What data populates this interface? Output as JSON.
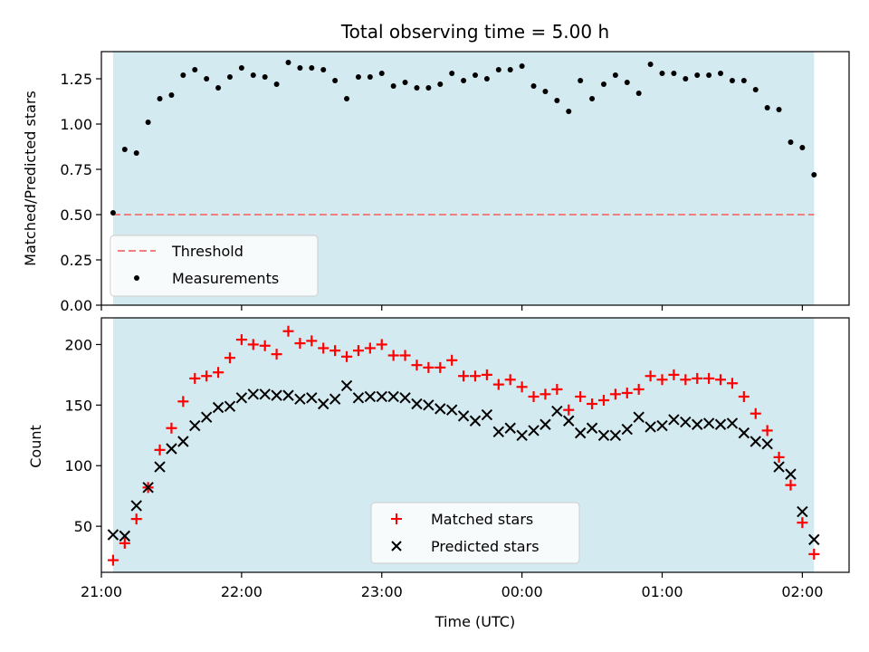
{
  "chart_data": [
    {
      "type": "scatter",
      "title": "Total observing time = 5.00 h",
      "ylabel": "Matched/Predicted stars",
      "xlabel": "",
      "xlim": [
        "21:00",
        "02:20"
      ],
      "ylim": [
        0,
        1.4
      ],
      "yticks": [
        "0.00",
        "0.25",
        "0.50",
        "0.75",
        "1.00",
        "1.25"
      ],
      "grid": false,
      "legend_position": "lower-left",
      "shaded_interval": {
        "start": "21:05",
        "end": "02:05",
        "color": "#d4eaf1"
      },
      "threshold": {
        "name": "Threshold",
        "value": 0.5,
        "color": "#f08080",
        "style": "dashed"
      },
      "series": [
        {
          "name": "Measurements",
          "color": "#000000",
          "marker": "dot",
          "x": [
            "21:05",
            "21:10",
            "21:15",
            "21:20",
            "21:25",
            "21:30",
            "21:35",
            "21:40",
            "21:45",
            "21:50",
            "21:55",
            "22:00",
            "22:05",
            "22:10",
            "22:15",
            "22:20",
            "22:25",
            "22:30",
            "22:35",
            "22:40",
            "22:45",
            "22:50",
            "22:55",
            "23:00",
            "23:05",
            "23:10",
            "23:15",
            "23:20",
            "23:25",
            "23:30",
            "23:35",
            "23:40",
            "23:45",
            "23:50",
            "23:55",
            "00:00",
            "00:05",
            "00:10",
            "00:15",
            "00:20",
            "00:25",
            "00:30",
            "00:35",
            "00:40",
            "00:45",
            "00:50",
            "00:55",
            "01:00",
            "01:05",
            "01:10",
            "01:15",
            "01:20",
            "01:25",
            "01:30",
            "01:35",
            "01:40",
            "01:45",
            "01:50",
            "01:55",
            "02:00",
            "02:05"
          ],
          "y": [
            0.51,
            0.86,
            0.84,
            1.01,
            1.14,
            1.16,
            1.27,
            1.3,
            1.25,
            1.2,
            1.26,
            1.31,
            1.27,
            1.26,
            1.22,
            1.34,
            1.31,
            1.31,
            1.3,
            1.24,
            1.14,
            1.26,
            1.26,
            1.28,
            1.21,
            1.23,
            1.2,
            1.2,
            1.22,
            1.28,
            1.24,
            1.27,
            1.25,
            1.3,
            1.3,
            1.32,
            1.21,
            1.18,
            1.13,
            1.07,
            1.24,
            1.14,
            1.22,
            1.27,
            1.23,
            1.17,
            1.33,
            1.28,
            1.28,
            1.25,
            1.27,
            1.27,
            1.28,
            1.24,
            1.24,
            1.19,
            1.09,
            1.08,
            0.9,
            0.87,
            0.72
          ]
        }
      ]
    },
    {
      "type": "scatter",
      "title": "",
      "xlabel": "Time (UTC)",
      "ylabel": "Count",
      "xlim": [
        "21:00",
        "02:20"
      ],
      "ylim": [
        12,
        222
      ],
      "xticks": [
        "21:00",
        "22:00",
        "23:00",
        "00:00",
        "01:00",
        "02:00"
      ],
      "yticks": [
        "50",
        "100",
        "150",
        "200"
      ],
      "grid": false,
      "legend_position": "lower-center",
      "shaded_interval": {
        "start": "21:05",
        "end": "02:05",
        "color": "#d4eaf1"
      },
      "series": [
        {
          "name": "Matched stars",
          "color": "#ff0000",
          "marker": "plus",
          "x": [
            "21:05",
            "21:10",
            "21:15",
            "21:20",
            "21:25",
            "21:30",
            "21:35",
            "21:40",
            "21:45",
            "21:50",
            "21:55",
            "22:00",
            "22:05",
            "22:10",
            "22:15",
            "22:20",
            "22:25",
            "22:30",
            "22:35",
            "22:40",
            "22:45",
            "22:50",
            "22:55",
            "23:00",
            "23:05",
            "23:10",
            "23:15",
            "23:20",
            "23:25",
            "23:30",
            "23:35",
            "23:40",
            "23:45",
            "23:50",
            "23:55",
            "00:00",
            "00:05",
            "00:10",
            "00:15",
            "00:20",
            "00:25",
            "00:30",
            "00:35",
            "00:40",
            "00:45",
            "00:50",
            "00:55",
            "01:00",
            "01:05",
            "01:10",
            "01:15",
            "01:20",
            "01:25",
            "01:30",
            "01:35",
            "01:40",
            "01:45",
            "01:50",
            "01:55",
            "02:00",
            "02:05"
          ],
          "y": [
            22,
            36,
            56,
            82,
            113,
            131,
            153,
            172,
            174,
            177,
            189,
            204,
            200,
            199,
            192,
            211,
            201,
            203,
            197,
            195,
            190,
            195,
            197,
            200,
            191,
            191,
            183,
            181,
            181,
            187,
            174,
            174,
            175,
            167,
            171,
            165,
            157,
            159,
            163,
            146,
            157,
            151,
            154,
            159,
            160,
            163,
            174,
            171,
            175,
            171,
            172,
            172,
            171,
            168,
            157,
            143,
            129,
            107,
            84,
            53,
            27
          ]
        },
        {
          "name": "Predicted stars",
          "color": "#000000",
          "marker": "x",
          "x": [
            "21:05",
            "21:10",
            "21:15",
            "21:20",
            "21:25",
            "21:30",
            "21:35",
            "21:40",
            "21:45",
            "21:50",
            "21:55",
            "22:00",
            "22:05",
            "22:10",
            "22:15",
            "22:20",
            "22:25",
            "22:30",
            "22:35",
            "22:40",
            "22:45",
            "22:50",
            "22:55",
            "23:00",
            "23:05",
            "23:10",
            "23:15",
            "23:20",
            "23:25",
            "23:30",
            "23:35",
            "23:40",
            "23:45",
            "23:50",
            "23:55",
            "00:00",
            "00:05",
            "00:10",
            "00:15",
            "00:20",
            "00:25",
            "00:30",
            "00:35",
            "00:40",
            "00:45",
            "00:50",
            "00:55",
            "01:00",
            "01:05",
            "01:10",
            "01:15",
            "01:20",
            "01:25",
            "01:30",
            "01:35",
            "01:40",
            "01:45",
            "01:50",
            "01:55",
            "02:00",
            "02:05"
          ],
          "y": [
            43,
            42,
            67,
            82,
            99,
            114,
            120,
            133,
            140,
            148,
            149,
            156,
            159,
            159,
            158,
            158,
            155,
            156,
            151,
            155,
            166,
            156,
            157,
            157,
            157,
            156,
            151,
            150,
            147,
            146,
            141,
            137,
            142,
            128,
            131,
            125,
            129,
            134,
            145,
            137,
            127,
            131,
            125,
            125,
            130,
            140,
            132,
            133,
            138,
            136,
            134,
            135,
            134,
            135,
            127,
            120,
            118,
            99,
            93,
            62,
            39
          ]
        }
      ]
    }
  ]
}
